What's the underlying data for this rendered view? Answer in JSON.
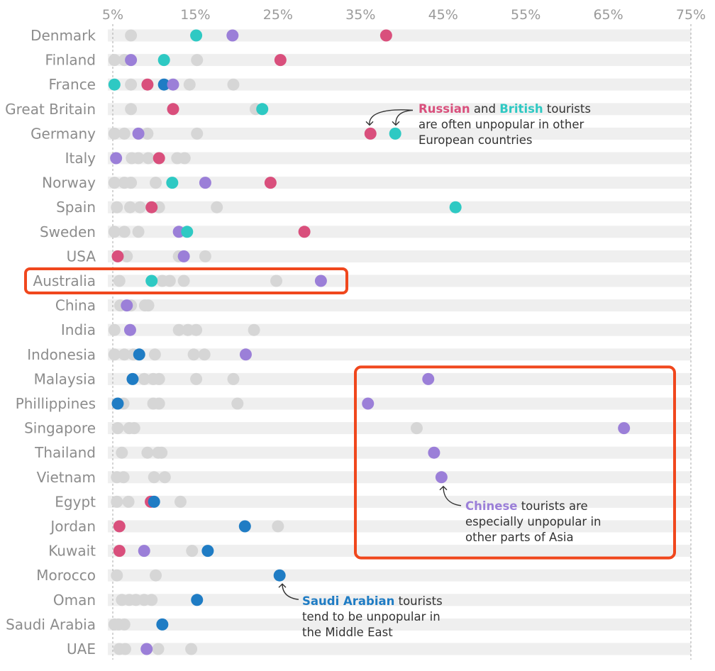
{
  "chart_data": {
    "type": "scatter",
    "x_ticks": [
      "5%",
      "15%",
      "25%",
      "35%",
      "45%",
      "55%",
      "65%",
      "75%"
    ],
    "xlim": [
      5,
      75
    ],
    "colors": {
      "russian": "#d94f7c",
      "british": "#2ec9c3",
      "chinese": "#9b7fd8",
      "saudi": "#1f7cc4",
      "other": "#d6d6d6",
      "highlight_box": "#f0471d",
      "band": "#efefef"
    },
    "rows": [
      {
        "country": "Denmark",
        "others": [
          7.2
        ],
        "points": [
          {
            "g": "british",
            "v": 15.1
          },
          {
            "g": "chinese",
            "v": 19.5
          },
          {
            "g": "russian",
            "v": 38.1
          }
        ]
      },
      {
        "country": "Finland",
        "others": [
          5.2,
          6.4,
          15.2
        ],
        "points": [
          {
            "g": "chinese",
            "v": 7.2
          },
          {
            "g": "british",
            "v": 11.2
          },
          {
            "g": "russian",
            "v": 25.3
          }
        ]
      },
      {
        "country": "France",
        "others": [
          7.2,
          14.3,
          19.6
        ],
        "points": [
          {
            "g": "british",
            "v": 5.2
          },
          {
            "g": "russian",
            "v": 9.2
          },
          {
            "g": "saudi",
            "v": 11.2
          },
          {
            "g": "chinese",
            "v": 12.3
          }
        ]
      },
      {
        "country": "Great Britain",
        "others": [
          7.2,
          22.3
        ],
        "points": [
          {
            "g": "russian",
            "v": 12.3
          },
          {
            "g": "british",
            "v": 23.1
          }
        ]
      },
      {
        "country": "Germany",
        "others": [
          5.2,
          6.4,
          9.2,
          15.2
        ],
        "points": [
          {
            "g": "chinese",
            "v": 8.1
          },
          {
            "g": "russian",
            "v": 36.2
          },
          {
            "g": "british",
            "v": 39.2
          }
        ]
      },
      {
        "country": "Italy",
        "others": [
          7.3,
          8.1,
          9.3,
          12.8,
          13.7
        ],
        "points": [
          {
            "g": "chinese",
            "v": 5.4
          },
          {
            "g": "russian",
            "v": 10.6
          }
        ]
      },
      {
        "country": "Norway",
        "others": [
          5.2,
          6.4,
          7.2,
          10.2
        ],
        "points": [
          {
            "g": "british",
            "v": 12.2
          },
          {
            "g": "chinese",
            "v": 16.2
          },
          {
            "g": "russian",
            "v": 24.1
          }
        ]
      },
      {
        "country": "Spain",
        "others": [
          5.5,
          7.1,
          8.3,
          10.6,
          17.6
        ],
        "points": [
          {
            "g": "russian",
            "v": 9.7
          },
          {
            "g": "british",
            "v": 46.5
          }
        ]
      },
      {
        "country": "Sweden",
        "others": [
          5.2,
          6.4,
          8.1
        ],
        "points": [
          {
            "g": "chinese",
            "v": 13.0
          },
          {
            "g": "british",
            "v": 14.0
          },
          {
            "g": "russian",
            "v": 28.2
          }
        ]
      },
      {
        "country": "USA",
        "others": [
          6.7,
          13.0,
          16.2
        ],
        "points": [
          {
            "g": "russian",
            "v": 5.6
          },
          {
            "g": "chinese",
            "v": 13.6
          }
        ]
      },
      {
        "country": "Australia",
        "others": [
          5.8,
          11.0,
          11.9,
          13.6,
          24.8
        ],
        "points": [
          {
            "g": "british",
            "v": 9.7
          },
          {
            "g": "chinese",
            "v": 30.2
          }
        ]
      },
      {
        "country": "China",
        "others": [
          5.9,
          7.2,
          8.9,
          9.3
        ],
        "points": [
          {
            "g": "chinese",
            "v": 6.7
          }
        ]
      },
      {
        "country": "India",
        "others": [
          5.2,
          13.0,
          14.1,
          15.1,
          22.1
        ],
        "points": [
          {
            "g": "chinese",
            "v": 7.1
          }
        ]
      },
      {
        "country": "Indonesia",
        "others": [
          5.2,
          6.4,
          7.5,
          10.1,
          14.8,
          16.1
        ],
        "points": [
          {
            "g": "saudi",
            "v": 8.2
          },
          {
            "g": "chinese",
            "v": 21.1
          }
        ]
      },
      {
        "country": "Malaysia",
        "others": [
          8.8,
          9.9,
          10.6,
          15.1,
          19.6
        ],
        "points": [
          {
            "g": "saudi",
            "v": 7.4
          },
          {
            "g": "chinese",
            "v": 43.2
          }
        ]
      },
      {
        "country": "Phillippines",
        "others": [
          6.3,
          9.9,
          10.6,
          20.1
        ],
        "points": [
          {
            "g": "saudi",
            "v": 5.6
          },
          {
            "g": "chinese",
            "v": 35.9
          }
        ]
      },
      {
        "country": "Singapore",
        "others": [
          5.6,
          7.0,
          7.6,
          41.8
        ],
        "points": [
          {
            "g": "chinese",
            "v": 66.9
          }
        ]
      },
      {
        "country": "Thailand",
        "others": [
          6.1,
          9.2,
          10.5,
          10.9
        ],
        "points": [
          {
            "g": "chinese",
            "v": 43.9
          }
        ]
      },
      {
        "country": "Vietnam",
        "others": [
          5.5,
          6.3,
          10.0,
          11.3
        ],
        "points": [
          {
            "g": "chinese",
            "v": 44.8
          }
        ]
      },
      {
        "country": "Egypt",
        "others": [
          5.5,
          6.9,
          13.2
        ],
        "points": [
          {
            "g": "russian",
            "v": 9.6
          },
          {
            "g": "saudi",
            "v": 10.0
          }
        ]
      },
      {
        "country": "Jordan",
        "others": [
          25.0
        ],
        "points": [
          {
            "g": "russian",
            "v": 5.8
          },
          {
            "g": "saudi",
            "v": 21.0
          }
        ]
      },
      {
        "country": "Kuwait",
        "others": [
          14.6
        ],
        "points": [
          {
            "g": "russian",
            "v": 5.8
          },
          {
            "g": "chinese",
            "v": 8.8
          },
          {
            "g": "saudi",
            "v": 16.5
          }
        ]
      },
      {
        "country": "Morocco",
        "others": [
          5.5,
          10.2
        ],
        "points": [
          {
            "g": "saudi",
            "v": 25.2
          }
        ]
      },
      {
        "country": "Oman",
        "others": [
          6.1,
          7.0,
          7.8,
          8.8,
          9.7
        ],
        "points": [
          {
            "g": "saudi",
            "v": 15.2
          }
        ]
      },
      {
        "country": "Saudi Arabia",
        "others": [
          5.2,
          5.7,
          6.4
        ],
        "points": [
          {
            "g": "saudi",
            "v": 11.0
          }
        ]
      },
      {
        "country": "UAE",
        "others": [
          5.8,
          6.5,
          10.5,
          14.5
        ],
        "points": [
          {
            "g": "chinese",
            "v": 9.1
          }
        ]
      }
    ]
  },
  "annotations": {
    "europe": {
      "t1": "Russian",
      "t2": " and ",
      "t3": "British",
      "t4": " tourists",
      "t5": "are often unpopular in other",
      "t6": "European countries"
    },
    "asia": {
      "t1": "Chinese",
      "t2": " tourists are",
      "t3": "especially unpopular in",
      "t4": "other parts of Asia"
    },
    "mideast": {
      "t1": "Saudi Arabian",
      "t2": " tourists",
      "t3": "tend to be unpopular in",
      "t4": "the Middle East"
    }
  }
}
